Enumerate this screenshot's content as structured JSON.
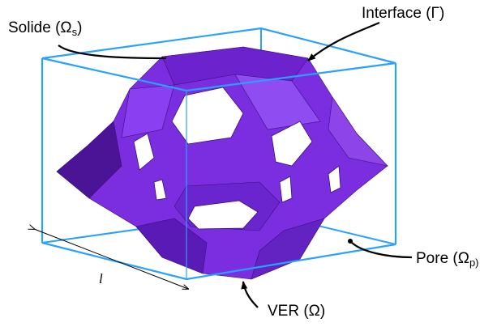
{
  "labels": {
    "solide": {
      "main": "Solide (Ω",
      "sub": "s",
      "close": ")"
    },
    "interface": "Interface (Γ)",
    "pore": {
      "main": "Pore (Ω",
      "sub": "p)"
    },
    "ver": "VER (Ω)",
    "length": "l"
  }
}
